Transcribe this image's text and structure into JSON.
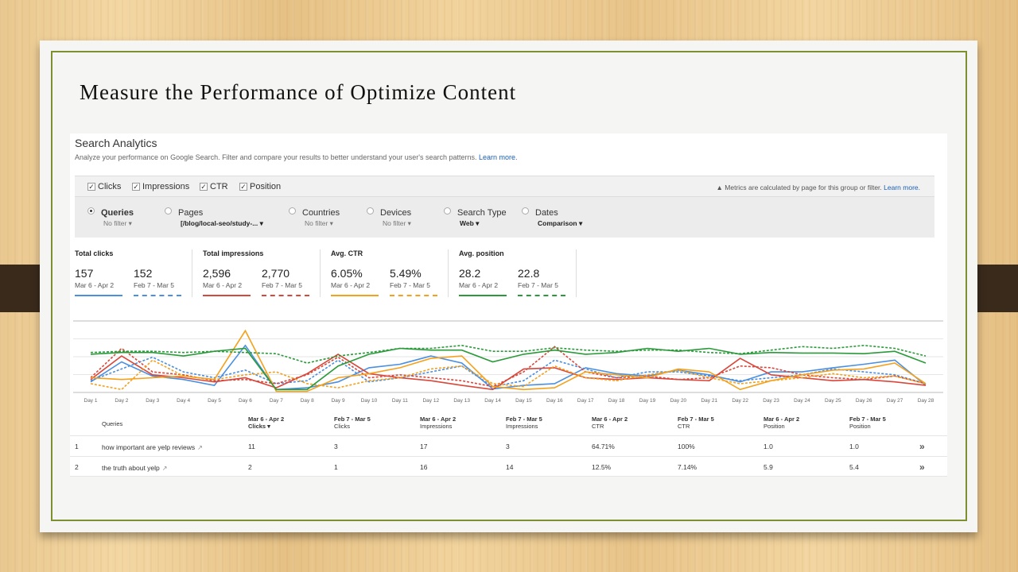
{
  "slide": {
    "title": "Measure the Performance of Optimize Content"
  },
  "search_analytics": {
    "title": "Search Analytics",
    "description": "Analyze your performance on Google Search. Filter and compare your results to better understand your user's search patterns.",
    "learn_more": "Learn more.",
    "metrics": [
      {
        "label": "Clicks",
        "checked": true
      },
      {
        "label": "Impressions",
        "checked": true
      },
      {
        "label": "CTR",
        "checked": true
      },
      {
        "label": "Position",
        "checked": true
      }
    ],
    "metrics_note": "Metrics are calculated by page for this group or filter.",
    "metrics_note_link": "Learn more.",
    "filters": [
      {
        "label": "Queries",
        "value": "No filter",
        "selected": true
      },
      {
        "label": "Pages",
        "value": "[/blog/local-seo/study-...",
        "selected": false
      },
      {
        "label": "Countries",
        "value": "No filter",
        "selected": false
      },
      {
        "label": "Devices",
        "value": "No filter",
        "selected": false
      },
      {
        "label": "Search Type",
        "value": "Web",
        "selected": false
      },
      {
        "label": "Dates",
        "value": "Comparison",
        "selected": false
      }
    ],
    "dropdown_glyph": "▾"
  },
  "stats": [
    {
      "label": "Total clicks",
      "current": "157",
      "current_range": "Mar 6 - Apr 2",
      "previous": "152",
      "previous_range": "Feb 7 - Mar 5",
      "color": "#4a8fe0"
    },
    {
      "label": "Total impressions",
      "current": "2,596",
      "current_range": "Mar 6 - Apr 2",
      "previous": "2,770",
      "previous_range": "Feb 7 - Mar 5",
      "color": "#d9463a"
    },
    {
      "label": "Avg. CTR",
      "current": "6.05%",
      "current_range": "Mar 6 - Apr 2",
      "previous": "5.49%",
      "previous_range": "Feb 7 - Mar 5",
      "color": "#f4a11c"
    },
    {
      "label": "Avg. position",
      "current": "28.2",
      "current_range": "Mar 6 - Apr 2",
      "previous": "22.8",
      "previous_range": "Feb 7 - Mar 5",
      "color": "#2a9a3a"
    }
  ],
  "chart_data": {
    "type": "line",
    "x": [
      "Day 1",
      "Day 2",
      "Day 3",
      "Day 4",
      "Day 5",
      "Day 6",
      "Day 7",
      "Day 8",
      "Day 9",
      "Day 10",
      "Day 11",
      "Day 12",
      "Day 13",
      "Day 14",
      "Day 15",
      "Day 16",
      "Day 17",
      "Day 18",
      "Day 19",
      "Day 20",
      "Day 21",
      "Day 22",
      "Day 23",
      "Day 24",
      "Day 25",
      "Day 26",
      "Day 27",
      "Day 28"
    ],
    "ylim": [
      0,
      100
    ],
    "grid": true,
    "series": [
      {
        "color": "#4a8fe0",
        "dashed": false,
        "values": [
          18,
          52,
          28,
          22,
          12,
          80,
          5,
          8,
          18,
          42,
          48,
          62,
          50,
          6,
          12,
          15,
          42,
          32,
          28,
          38,
          30,
          18,
          35,
          35,
          42,
          48,
          55,
          12
        ]
      },
      {
        "color": "#4a8fe0",
        "dashed": true,
        "values": [
          20,
          40,
          60,
          35,
          25,
          38,
          15,
          20,
          55,
          18,
          25,
          35,
          45,
          10,
          20,
          55,
          40,
          25,
          35,
          35,
          28,
          20,
          25,
          30,
          40,
          35,
          30,
          15
        ]
      },
      {
        "color": "#d9463a",
        "dashed": false,
        "values": [
          22,
          62,
          30,
          25,
          18,
          25,
          8,
          32,
          65,
          32,
          25,
          20,
          12,
          5,
          40,
          42,
          25,
          22,
          25,
          22,
          20,
          58,
          30,
          25,
          20,
          22,
          18,
          12
        ]
      },
      {
        "color": "#d9463a",
        "dashed": true,
        "values": [
          25,
          75,
          35,
          30,
          20,
          22,
          15,
          30,
          60,
          25,
          30,
          25,
          20,
          10,
          35,
          78,
          35,
          25,
          28,
          22,
          25,
          45,
          42,
          30,
          25,
          22,
          28,
          15
        ]
      },
      {
        "color": "#f4a11c",
        "dashed": false,
        "values": [
          25,
          22,
          25,
          28,
          22,
          105,
          2,
          2,
          25,
          32,
          42,
          58,
          62,
          10,
          5,
          8,
          35,
          30,
          25,
          40,
          35,
          5,
          20,
          30,
          38,
          40,
          50,
          15
        ]
      },
      {
        "color": "#f4a11c",
        "dashed": true,
        "values": [
          15,
          5,
          55,
          28,
          22,
          30,
          35,
          15,
          8,
          20,
          25,
          40,
          45,
          15,
          10,
          45,
          25,
          20,
          30,
          38,
          25,
          15,
          20,
          25,
          32,
          25,
          28,
          15
        ]
      },
      {
        "color": "#2a9a3a",
        "dashed": false,
        "values": [
          65,
          68,
          68,
          62,
          70,
          75,
          5,
          5,
          45,
          65,
          75,
          72,
          72,
          52,
          65,
          72,
          65,
          68,
          75,
          70,
          75,
          65,
          68,
          67,
          67,
          66,
          70,
          50
        ]
      },
      {
        "color": "#2a9a3a",
        "dashed": true,
        "values": [
          68,
          70,
          70,
          68,
          70,
          68,
          66,
          50,
          62,
          68,
          75,
          75,
          80,
          70,
          70,
          76,
          72,
          70,
          72,
          72,
          68,
          66,
          72,
          78,
          75,
          80,
          75,
          62
        ]
      }
    ]
  },
  "table": {
    "headers": [
      {
        "line1": "",
        "line2": "Queries"
      },
      {
        "line1": "Mar 6 - Apr 2",
        "line2": "Clicks ▾"
      },
      {
        "line1": "Feb 7 - Mar 5",
        "line2": "Clicks"
      },
      {
        "line1": "Mar 6 - Apr 2",
        "line2": "Impressions"
      },
      {
        "line1": "Feb 7 - Mar 5",
        "line2": "Impressions"
      },
      {
        "line1": "Mar 6 - Apr 2",
        "line2": "CTR"
      },
      {
        "line1": "Feb 7 - Mar 5",
        "line2": "CTR"
      },
      {
        "line1": "Mar 6 - Apr 2",
        "line2": "Position"
      },
      {
        "line1": "Feb 7 - Mar 5",
        "line2": "Position"
      }
    ],
    "rows": [
      {
        "index": "1",
        "query": "how important are yelp reviews",
        "cells": [
          "11",
          "3",
          "17",
          "3",
          "64.71%",
          "100%",
          "1.0",
          "1.0"
        ]
      },
      {
        "index": "2",
        "query": "the truth about yelp",
        "cells": [
          "2",
          "1",
          "16",
          "14",
          "12.5%",
          "7.14%",
          "5.9",
          "5.4"
        ]
      }
    ]
  }
}
